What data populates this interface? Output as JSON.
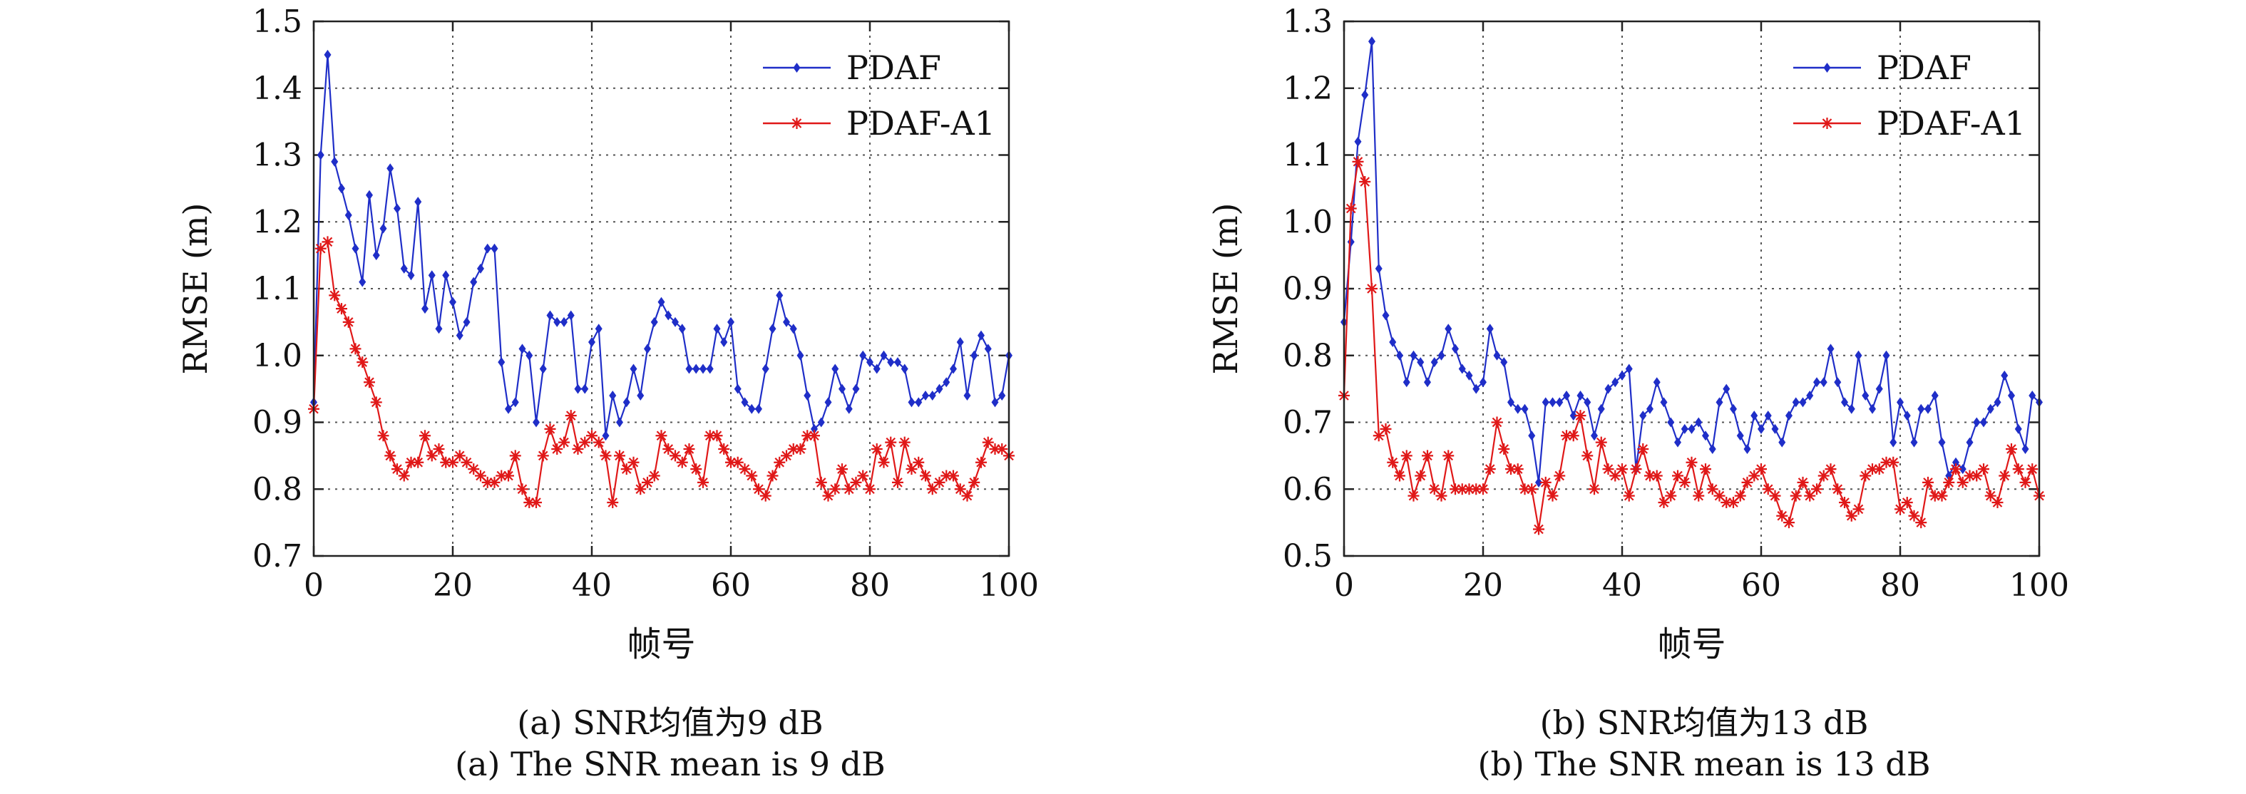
{
  "colors": {
    "pdaf": "#1f2ec8",
    "pdaf_a1": "#e01818",
    "axis": "#222222",
    "grid": "#555555",
    "background": "#ffffff"
  },
  "captions": {
    "a_zh": "(a) SNR均值为9 dB",
    "a_en": "(a) The SNR mean is 9 dB",
    "b_zh": "(b) SNR均值为13 dB",
    "b_en": "(b) The SNR mean is 13 dB"
  },
  "chart_data": [
    {
      "type": "line",
      "title": "",
      "xlabel": "帧号",
      "ylabel": "RMSE (m)",
      "xlim": [
        0,
        100
      ],
      "ylim": [
        0.7,
        1.5
      ],
      "xticks": [
        0,
        20,
        40,
        60,
        80,
        100
      ],
      "yticks": [
        0.7,
        0.8,
        0.9,
        1.0,
        1.1,
        1.2,
        1.3,
        1.4,
        1.5
      ],
      "ytick_labels": [
        "0.7",
        "0.8",
        "0.9",
        "1.0",
        "1.1",
        "1.2",
        "1.3",
        "1.4",
        "1.5"
      ],
      "grid": true,
      "legend_position": "top-right",
      "series": [
        {
          "name": "PDAF",
          "marker": "diamond",
          "color": "#1f2ec8",
          "values": [
            0.93,
            1.3,
            1.45,
            1.29,
            1.25,
            1.21,
            1.16,
            1.11,
            1.24,
            1.15,
            1.19,
            1.28,
            1.22,
            1.13,
            1.12,
            1.23,
            1.07,
            1.12,
            1.04,
            1.12,
            1.08,
            1.03,
            1.05,
            1.11,
            1.13,
            1.16,
            1.16,
            0.99,
            0.92,
            0.93,
            1.01,
            1.0,
            0.9,
            0.98,
            1.06,
            1.05,
            1.05,
            1.06,
            0.95,
            0.95,
            1.02,
            1.04,
            0.88,
            0.94,
            0.9,
            0.93,
            0.98,
            0.94,
            1.01,
            1.05,
            1.08,
            1.06,
            1.05,
            1.04,
            0.98,
            0.98,
            0.98,
            0.98,
            1.04,
            1.02,
            1.05,
            0.95,
            0.93,
            0.92,
            0.92,
            0.98,
            1.04,
            1.09,
            1.05,
            1.04,
            1.0,
            0.94,
            0.89,
            0.9,
            0.93,
            0.98,
            0.95,
            0.92,
            0.95,
            1.0,
            0.99,
            0.98,
            1.0,
            0.99,
            0.99,
            0.98,
            0.93,
            0.93,
            0.94,
            0.94,
            0.95,
            0.96,
            0.98,
            1.02,
            0.94,
            1.0,
            1.03,
            1.01,
            0.93,
            0.94,
            1.0
          ]
        },
        {
          "name": "PDAF-A1",
          "marker": "star",
          "color": "#e01818",
          "values": [
            0.92,
            1.16,
            1.17,
            1.09,
            1.07,
            1.05,
            1.01,
            0.99,
            0.96,
            0.93,
            0.88,
            0.85,
            0.83,
            0.82,
            0.84,
            0.84,
            0.88,
            0.85,
            0.86,
            0.84,
            0.84,
            0.85,
            0.84,
            0.83,
            0.82,
            0.81,
            0.81,
            0.82,
            0.82,
            0.85,
            0.8,
            0.78,
            0.78,
            0.85,
            0.89,
            0.86,
            0.87,
            0.91,
            0.86,
            0.87,
            0.88,
            0.87,
            0.85,
            0.78,
            0.85,
            0.83,
            0.84,
            0.8,
            0.81,
            0.82,
            0.88,
            0.86,
            0.85,
            0.84,
            0.86,
            0.83,
            0.81,
            0.88,
            0.88,
            0.86,
            0.84,
            0.84,
            0.83,
            0.82,
            0.8,
            0.79,
            0.82,
            0.84,
            0.85,
            0.86,
            0.86,
            0.88,
            0.88,
            0.81,
            0.79,
            0.8,
            0.83,
            0.8,
            0.81,
            0.82,
            0.8,
            0.86,
            0.84,
            0.87,
            0.81,
            0.87,
            0.83,
            0.84,
            0.82,
            0.8,
            0.81,
            0.82,
            0.82,
            0.8,
            0.79,
            0.81,
            0.84,
            0.87,
            0.86,
            0.86,
            0.85
          ]
        }
      ]
    },
    {
      "type": "line",
      "title": "",
      "xlabel": "帧号",
      "ylabel": "RMSE (m)",
      "xlim": [
        0,
        100
      ],
      "ylim": [
        0.5,
        1.3
      ],
      "xticks": [
        0,
        20,
        40,
        60,
        80,
        100
      ],
      "yticks": [
        0.5,
        0.6,
        0.7,
        0.8,
        0.9,
        1.0,
        1.1,
        1.2,
        1.3
      ],
      "ytick_labels": [
        "0.5",
        "0.6",
        "0.7",
        "0.8",
        "0.9",
        "1.0",
        "1.1",
        "1.2",
        "1.3"
      ],
      "grid": true,
      "legend_position": "top-right",
      "series": [
        {
          "name": "PDAF",
          "marker": "diamond",
          "color": "#1f2ec8",
          "values": [
            0.85,
            0.97,
            1.12,
            1.19,
            1.27,
            0.93,
            0.86,
            0.82,
            0.8,
            0.76,
            0.8,
            0.79,
            0.76,
            0.79,
            0.8,
            0.84,
            0.81,
            0.78,
            0.77,
            0.75,
            0.76,
            0.84,
            0.8,
            0.79,
            0.73,
            0.72,
            0.72,
            0.68,
            0.61,
            0.73,
            0.73,
            0.73,
            0.74,
            0.71,
            0.74,
            0.73,
            0.68,
            0.72,
            0.75,
            0.76,
            0.77,
            0.78,
            0.63,
            0.71,
            0.72,
            0.76,
            0.73,
            0.7,
            0.67,
            0.69,
            0.69,
            0.7,
            0.68,
            0.66,
            0.73,
            0.75,
            0.72,
            0.68,
            0.66,
            0.71,
            0.69,
            0.71,
            0.69,
            0.67,
            0.71,
            0.73,
            0.73,
            0.74,
            0.76,
            0.76,
            0.81,
            0.76,
            0.73,
            0.72,
            0.8,
            0.74,
            0.72,
            0.75,
            0.8,
            0.67,
            0.73,
            0.71,
            0.67,
            0.72,
            0.72,
            0.74,
            0.67,
            0.62,
            0.64,
            0.63,
            0.67,
            0.7,
            0.7,
            0.72,
            0.73,
            0.77,
            0.74,
            0.69,
            0.66,
            0.74,
            0.73
          ]
        },
        {
          "name": "PDAF-A1",
          "marker": "star",
          "color": "#e01818",
          "values": [
            0.74,
            1.02,
            1.09,
            1.06,
            0.9,
            0.68,
            0.69,
            0.64,
            0.62,
            0.65,
            0.59,
            0.62,
            0.65,
            0.6,
            0.59,
            0.65,
            0.6,
            0.6,
            0.6,
            0.6,
            0.6,
            0.63,
            0.7,
            0.66,
            0.63,
            0.63,
            0.6,
            0.6,
            0.54,
            0.61,
            0.59,
            0.62,
            0.68,
            0.68,
            0.71,
            0.65,
            0.6,
            0.67,
            0.63,
            0.62,
            0.63,
            0.59,
            0.63,
            0.66,
            0.62,
            0.62,
            0.58,
            0.59,
            0.62,
            0.61,
            0.64,
            0.59,
            0.63,
            0.6,
            0.59,
            0.58,
            0.58,
            0.59,
            0.61,
            0.62,
            0.63,
            0.6,
            0.59,
            0.56,
            0.55,
            0.59,
            0.61,
            0.59,
            0.6,
            0.62,
            0.63,
            0.6,
            0.58,
            0.56,
            0.57,
            0.62,
            0.63,
            0.63,
            0.64,
            0.64,
            0.57,
            0.58,
            0.56,
            0.55,
            0.61,
            0.59,
            0.59,
            0.61,
            0.63,
            0.61,
            0.62,
            0.62,
            0.63,
            0.59,
            0.58,
            0.62,
            0.66,
            0.63,
            0.61,
            0.63,
            0.59
          ]
        }
      ]
    }
  ]
}
